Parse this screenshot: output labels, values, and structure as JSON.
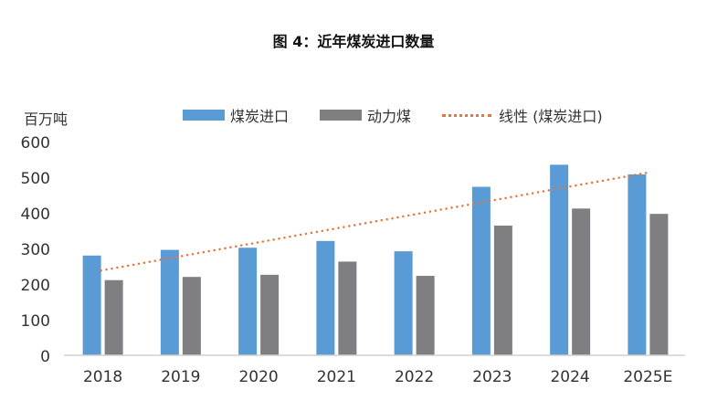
{
  "chart_data": {
    "type": "bar",
    "title": "图 4：近年煤炭进口数量",
    "ylabel": "百万吨",
    "xlabel": "",
    "categories": [
      "2018",
      "2019",
      "2020",
      "2021",
      "2022",
      "2023",
      "2024",
      "2025E"
    ],
    "series": [
      {
        "name": "煤炭进口",
        "color": "#5b9bd5",
        "values": [
          280,
          296,
          302,
          321,
          292,
          473,
          535,
          508
        ]
      },
      {
        "name": "动力煤",
        "color": "#7f7f82",
        "values": [
          211,
          220,
          226,
          263,
          223,
          364,
          412,
          397
        ]
      }
    ],
    "trendline": {
      "name": "线性 (煤炭进口)",
      "color": "#e8743b",
      "style": "dotted",
      "start": 238,
      "end": 512
    },
    "ylim": [
      0,
      600
    ],
    "yticks": [
      0,
      100,
      200,
      300,
      400,
      500,
      600
    ],
    "grid": false,
    "legend": "top"
  }
}
